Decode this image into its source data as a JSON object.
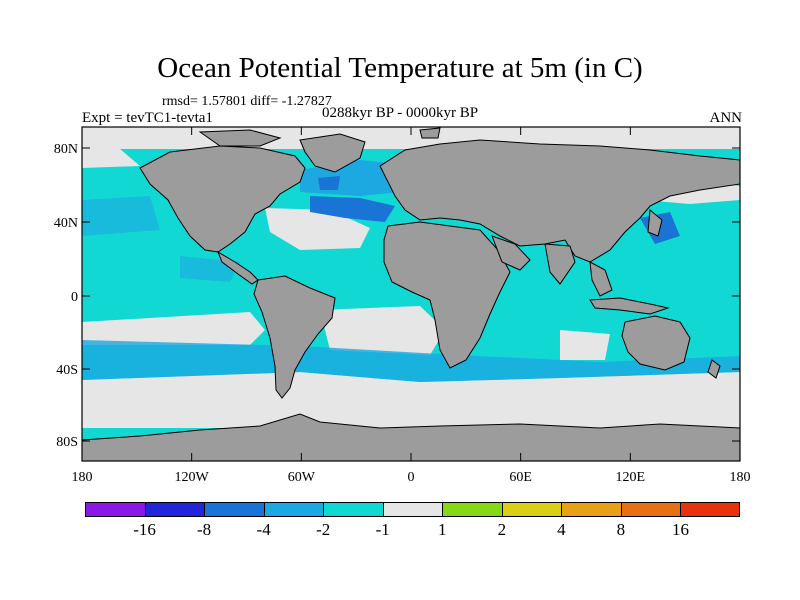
{
  "header": {
    "title": "Ocean Potential Temperature at 5m (in C)",
    "stats": "rmsd= 1.57801 diff= -1.27827",
    "experiment": "Expt = tevTC1-tevta1",
    "period": "0288kyr BP - 0000kyr BP",
    "season": "ANN"
  },
  "map": {
    "lat_ticks": [
      "80N",
      "40N",
      "0",
      "40S",
      "80S"
    ],
    "lon_ticks": [
      "180",
      "120W",
      "60W",
      "0",
      "60E",
      "120E",
      "180"
    ],
    "land_color": "#9c9c9c",
    "coast_color": "#000000"
  },
  "colorbar": {
    "colors": [
      "#8a19e6",
      "#2424d8",
      "#1a74d6",
      "#1ca8e0",
      "#12d8d4",
      "#e6e6e6",
      "#86d915",
      "#d9cf15",
      "#e6a214",
      "#e67014",
      "#e6320f"
    ],
    "labels": [
      "-16",
      "-8",
      "-4",
      "-2",
      "-1",
      "1",
      "2",
      "4",
      "8",
      "16"
    ]
  },
  "legend_colors": {
    "light_cyan": "#12d8d4",
    "medium_blue": "#1ca8e0",
    "dark_blue": "#1a74d6",
    "neutral": "#e6e6e6"
  }
}
